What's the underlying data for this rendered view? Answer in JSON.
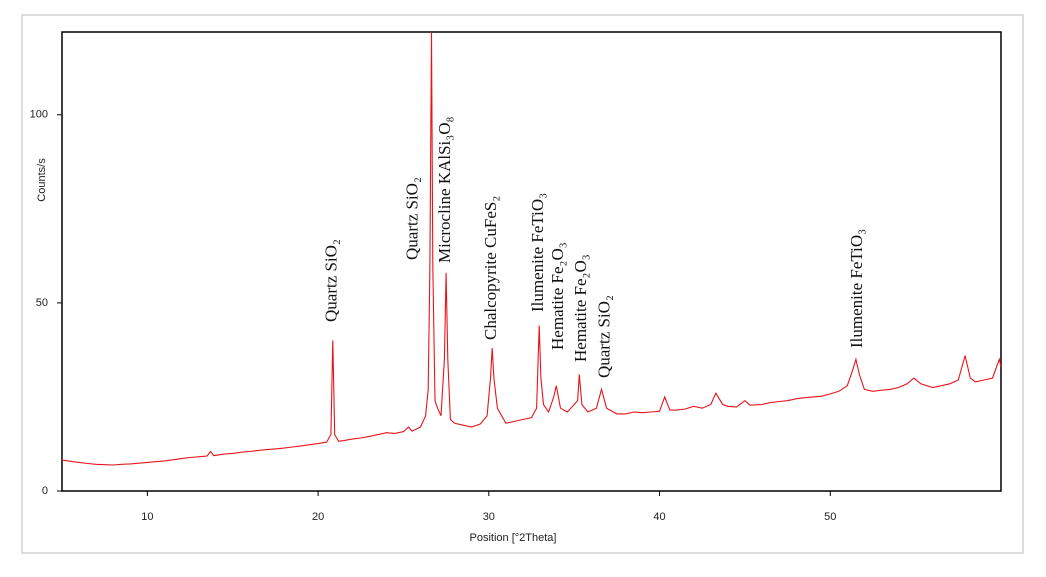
{
  "chart_data": {
    "type": "line",
    "xlabel": "Position [°2Theta]",
    "ylabel": "Counts/s",
    "xlim": [
      5,
      60
    ],
    "xticks": [
      10,
      20,
      30,
      40,
      50
    ],
    "ylim": [
      0,
      122
    ],
    "yticks": [
      0,
      50,
      100
    ],
    "grid": false,
    "series": [
      {
        "name": "",
        "color": "#e8141b",
        "x": [
          5,
          5.5,
          6,
          6.5,
          7,
          7.5,
          8,
          8.5,
          9,
          9.5,
          10,
          10.5,
          11,
          11.5,
          12,
          12.5,
          13,
          13.5,
          13.7,
          13.9,
          14.5,
          15,
          15.5,
          16,
          16.5,
          17,
          17.5,
          18,
          18.5,
          19,
          19.5,
          20,
          20.5,
          20.75,
          20.86,
          20.97,
          21.2,
          21.5,
          22,
          22.5,
          23,
          23.5,
          24,
          24.5,
          25,
          25.3,
          25.5,
          26,
          26.3,
          26.45,
          26.55,
          26.64,
          26.72,
          26.85,
          27,
          27.2,
          27.4,
          27.5,
          27.6,
          27.75,
          28,
          28.5,
          29,
          29.5,
          29.9,
          30.1,
          30.2,
          30.3,
          30.5,
          31,
          31.5,
          32,
          32.5,
          32.8,
          32.95,
          33.05,
          33.2,
          33.5,
          33.8,
          33.95,
          34.2,
          34.6,
          35.2,
          35.3,
          35.45,
          35.8,
          36.3,
          36.6,
          36.9,
          37.5,
          38,
          38.5,
          39,
          39.5,
          40,
          40.3,
          40.6,
          41,
          41.5,
          42,
          42.5,
          43,
          43.3,
          43.7,
          44,
          44.5,
          45,
          45.3,
          46,
          46.5,
          47,
          47.5,
          48,
          48.5,
          49,
          49.5,
          50,
          50.5,
          51,
          51.3,
          51.5,
          51.7,
          52,
          52.5,
          53,
          53.5,
          54,
          54.5,
          54.9,
          55.3,
          56,
          56.5,
          57,
          57.5,
          57.9,
          58.2,
          58.5,
          59,
          59.5,
          59.9,
          60
        ],
        "values": [
          8.2,
          7.9,
          7.6,
          7.3,
          7.1,
          7,
          6.9,
          7.1,
          7.2,
          7.4,
          7.6,
          7.8,
          8,
          8.3,
          8.6,
          8.9,
          9.1,
          9.3,
          10.5,
          9.4,
          9.8,
          10,
          10.3,
          10.5,
          10.8,
          11,
          11.2,
          11.4,
          11.7,
          12,
          12.3,
          12.6,
          13,
          15,
          40,
          15,
          13.2,
          13.4,
          13.8,
          14.1,
          14.5,
          15,
          15.5,
          15.3,
          15.8,
          17,
          15.9,
          17,
          20,
          27,
          60,
          122,
          60,
          24,
          22,
          20,
          35,
          58,
          35,
          19,
          18,
          17.5,
          17,
          17.8,
          20,
          30,
          38,
          30,
          22,
          18,
          18.5,
          19,
          19.5,
          22,
          44,
          30,
          23,
          21,
          25,
          28,
          22,
          21,
          24,
          31,
          23,
          21,
          22,
          27,
          22,
          20.5,
          20.5,
          21,
          20.8,
          21,
          21.2,
          25,
          21.5,
          21.5,
          21.8,
          22.5,
          22,
          23,
          26,
          23,
          22.5,
          22.3,
          24,
          22.8,
          23,
          23.5,
          23.8,
          24,
          24.5,
          24.8,
          25,
          25.2,
          25.8,
          26.5,
          28,
          32,
          35,
          31,
          27,
          26.5,
          26.8,
          27,
          27.5,
          28.5,
          30,
          28.5,
          27.5,
          28,
          28.5,
          29.5,
          36,
          30,
          29,
          29.5,
          30,
          35,
          33
        ]
      }
    ],
    "annotations": [
      {
        "text": "Quartz SiO₂",
        "x": 20.86
      },
      {
        "text": "Quartz SiO₂",
        "x": 26.64
      },
      {
        "text": "Microcline KAlSi₃O₈",
        "x": 27.5
      },
      {
        "text": "Chalcopyrite CuFeS₂",
        "x": 30.2
      },
      {
        "text": "Ilumenite FeTiO₃",
        "x": 32.95
      },
      {
        "text": "Hematite Fe₂O₃",
        "x": 33.95
      },
      {
        "text": "Hematite Fe₂O₃",
        "x": 35.3
      },
      {
        "text": "Quartz SiO₂",
        "x": 36.6
      },
      {
        "text": "Ilumenite FeTiO₃",
        "x": 51.5
      }
    ]
  }
}
